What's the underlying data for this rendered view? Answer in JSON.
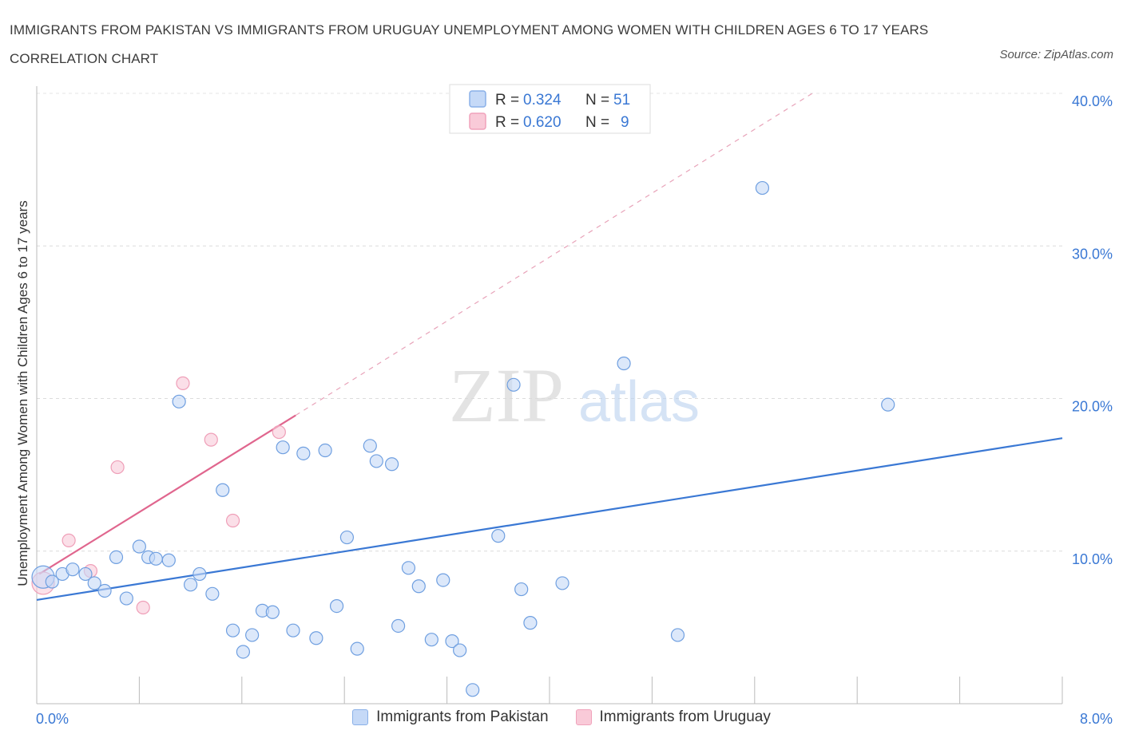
{
  "title": "IMMIGRANTS FROM PAKISTAN VS IMMIGRANTS FROM URUGUAY UNEMPLOYMENT AMONG WOMEN WITH CHILDREN AGES 6 TO 17 YEARS CORRELATION CHART",
  "source": "Source: ZipAtlas.com",
  "watermark": {
    "zip": "ZIP",
    "atlas": "atlas"
  },
  "colors": {
    "blue": "#3a78d4",
    "blue_fill": "#c5d9f7",
    "pink": "#e0668e",
    "pink_fill": "#f9cad8",
    "axis_label": "#3a78d4"
  },
  "legend_top": [
    {
      "r_label": "R =",
      "r_value": "0.324",
      "n_label": "N =",
      "n_value": "51"
    },
    {
      "r_label": "R =",
      "r_value": "0.620",
      "n_label": "N =",
      "n_value": "9"
    }
  ],
  "legend_bottom": [
    "Immigrants from Pakistan",
    "Immigrants from Uruguay"
  ],
  "chart_data": {
    "type": "scatter",
    "title": "IMMIGRANTS FROM PAKISTAN VS IMMIGRANTS FROM URUGUAY UNEMPLOYMENT AMONG WOMEN WITH CHILDREN AGES 6 TO 17 YEARS CORRELATION CHART",
    "xlabel": "",
    "ylabel": "Unemployment Among Women with Children Ages 6 to 17 years",
    "xlim": [
      0,
      8
    ],
    "ylim": [
      0,
      40
    ],
    "x_tick_labels": [
      "0.0%",
      "8.0%"
    ],
    "y_ticks": [
      10,
      20,
      30,
      40
    ],
    "y_tick_labels": [
      "10.0%",
      "20.0%",
      "30.0%",
      "40.0%"
    ],
    "grid": true,
    "series": [
      {
        "name": "Immigrants from Pakistan",
        "r": 0.324,
        "n": 51,
        "trend": {
          "x": [
            0,
            8
          ],
          "y": [
            6.8,
            17.4
          ],
          "dashed": false
        },
        "points": [
          {
            "x": 0.05,
            "y": 8.3,
            "big": true
          },
          {
            "x": 0.12,
            "y": 8.0
          },
          {
            "x": 0.2,
            "y": 8.5
          },
          {
            "x": 0.28,
            "y": 8.8
          },
          {
            "x": 0.38,
            "y": 8.5
          },
          {
            "x": 0.45,
            "y": 7.9
          },
          {
            "x": 0.53,
            "y": 7.4
          },
          {
            "x": 0.62,
            "y": 9.6
          },
          {
            "x": 0.7,
            "y": 6.9
          },
          {
            "x": 0.8,
            "y": 10.3
          },
          {
            "x": 0.87,
            "y": 9.6
          },
          {
            "x": 0.93,
            "y": 9.5
          },
          {
            "x": 1.03,
            "y": 9.4
          },
          {
            "x": 1.11,
            "y": 19.8
          },
          {
            "x": 1.2,
            "y": 7.8
          },
          {
            "x": 1.27,
            "y": 8.5
          },
          {
            "x": 1.37,
            "y": 7.2
          },
          {
            "x": 1.45,
            "y": 14.0
          },
          {
            "x": 1.53,
            "y": 4.8
          },
          {
            "x": 1.61,
            "y": 3.4
          },
          {
            "x": 1.68,
            "y": 4.5
          },
          {
            "x": 1.76,
            "y": 6.1
          },
          {
            "x": 1.84,
            "y": 6.0
          },
          {
            "x": 1.92,
            "y": 16.8
          },
          {
            "x": 2.0,
            "y": 4.8
          },
          {
            "x": 2.08,
            "y": 16.4
          },
          {
            "x": 2.18,
            "y": 4.3
          },
          {
            "x": 2.25,
            "y": 16.6
          },
          {
            "x": 2.34,
            "y": 6.4
          },
          {
            "x": 2.42,
            "y": 10.9
          },
          {
            "x": 2.5,
            "y": 3.6
          },
          {
            "x": 2.6,
            "y": 16.9
          },
          {
            "x": 2.65,
            "y": 15.9
          },
          {
            "x": 2.77,
            "y": 15.7
          },
          {
            "x": 2.82,
            "y": 5.1
          },
          {
            "x": 2.9,
            "y": 8.9
          },
          {
            "x": 2.98,
            "y": 7.7
          },
          {
            "x": 3.08,
            "y": 4.2
          },
          {
            "x": 3.17,
            "y": 8.1
          },
          {
            "x": 3.24,
            "y": 4.1
          },
          {
            "x": 3.3,
            "y": 3.5
          },
          {
            "x": 3.4,
            "y": 0.9
          },
          {
            "x": 3.6,
            "y": 11.0
          },
          {
            "x": 3.72,
            "y": 20.9
          },
          {
            "x": 3.78,
            "y": 7.5
          },
          {
            "x": 3.85,
            "y": 5.3
          },
          {
            "x": 4.1,
            "y": 7.9
          },
          {
            "x": 4.58,
            "y": 22.3
          },
          {
            "x": 5.0,
            "y": 4.5
          },
          {
            "x": 5.66,
            "y": 33.8
          },
          {
            "x": 6.64,
            "y": 19.6
          }
        ]
      },
      {
        "name": "Immigrants from Uruguay",
        "r": 0.62,
        "n": 9,
        "trend": {
          "x": [
            0.02,
            2.02
          ],
          "y": [
            8.5,
            18.9
          ],
          "dashed_to": [
            6.05,
            40.0
          ]
        },
        "points": [
          {
            "x": 0.05,
            "y": 7.9,
            "big": true
          },
          {
            "x": 0.25,
            "y": 10.7
          },
          {
            "x": 0.42,
            "y": 8.7
          },
          {
            "x": 0.63,
            "y": 15.5
          },
          {
            "x": 0.83,
            "y": 6.3
          },
          {
            "x": 1.14,
            "y": 21.0
          },
          {
            "x": 1.36,
            "y": 17.3
          },
          {
            "x": 1.53,
            "y": 12.0
          },
          {
            "x": 1.89,
            "y": 17.8
          }
        ]
      }
    ]
  }
}
